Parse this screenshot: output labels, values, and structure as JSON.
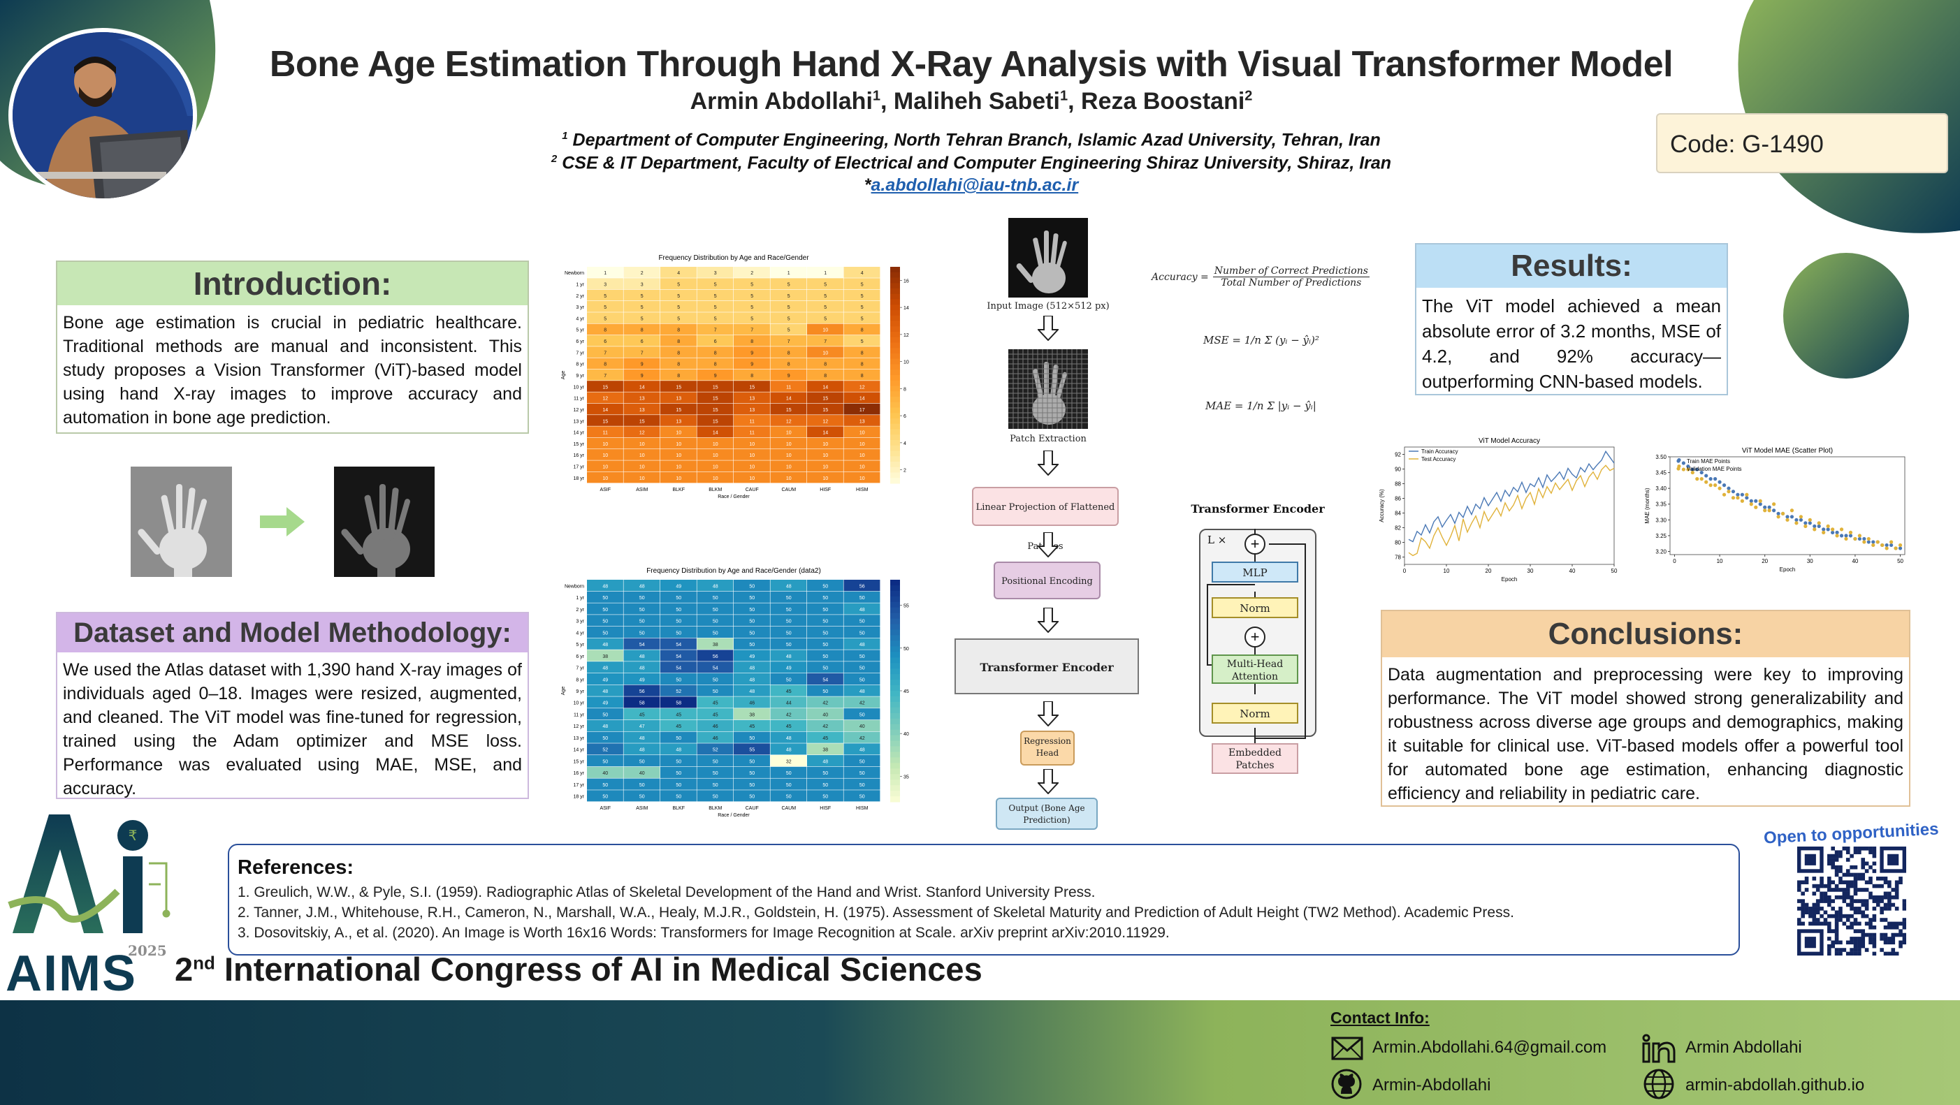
{
  "header": {
    "title": "Bone Age Estimation Through Hand X-Ray Analysis with Visual Transformer Model",
    "authors": [
      {
        "name": "Armin Abdollahi",
        "sup": "1"
      },
      {
        "name": "Maliheh Sabeti",
        "sup": "1"
      },
      {
        "name": "Reza Boostani",
        "sup": "2"
      }
    ],
    "affil1_sup": "1",
    "affil1": "Department of Computer Engineering, North Tehran Branch, Islamic Azad University, Tehran, Iran",
    "affil2_sup": "2",
    "affil2": "CSE & IT Department, Faculty of Electrical and Computer Engineering Shiraz University, Shiraz, Iran",
    "email_prefix": "*",
    "email": "a.abdollahi@iau-tnb.ac.ir",
    "code": "Code: G-1490"
  },
  "introduction": {
    "title": "Introduction:",
    "text": "Bone age estimation is crucial in pediatric healthcare. Traditional methods are manual and inconsistent. This study proposes a Vision Transformer (ViT)-based model using hand X-ray images to improve accuracy and automation in bone age prediction."
  },
  "methodology": {
    "title": "Dataset and Model Methodology:",
    "text": "We used the Atlas dataset with 1,390 hand X-ray images of individuals aged 0–18. Images were resized, augmented, and cleaned. The ViT model was fine-tuned for regression, trained using the Adam optimizer and MSE loss. Performance was evaluated using MAE, MSE, and accuracy."
  },
  "results": {
    "title": "Results:",
    "text": "The ViT model achieved a mean absolute error of 3.2 months, MSE of 4.2, and 92% accuracy—outperforming CNN-based models."
  },
  "conclusions": {
    "title": "Conclusions:",
    "text": "Data augmentation and preprocessing were key to improving performance. The ViT model showed strong generalizability and robustness across diverse age groups and demographics, making it suitable for clinical use. ViT-based models offer a powerful tool for automated bone age estimation, enhancing diagnostic efficiency and reliability in pediatric care."
  },
  "pipeline": {
    "input": "Input Image (512×512 px)",
    "patch": "Patch Extraction",
    "linear": "Linear Projection of Flattened Patches",
    "positional": "Positional Encoding",
    "encoder": "Transformer Encoder",
    "regression": "Regression Head",
    "output": "Output (Bone Age Prediction)"
  },
  "encoder_block": {
    "title": "Transformer Encoder",
    "repeat": "L ×",
    "mlp": "MLP",
    "norm1": "Norm",
    "attention": "Multi-Head Attention",
    "norm2": "Norm",
    "embedded": "Embedded Patches",
    "plus": "+"
  },
  "formulas": {
    "accuracy_lhs": "Accuracy =",
    "accuracy_num": "Number of Correct Predictions",
    "accuracy_den": "Total Number of Predictions",
    "mse": "MSE = 1/n Σ (yᵢ − ŷᵢ)²",
    "mae": "MAE = 1/n Σ |yᵢ − ŷᵢ|"
  },
  "references": {
    "title": "References:",
    "items": [
      "1. Greulich, W.W., & Pyle, S.I. (1959). Radiographic Atlas of Skeletal Development of the Hand and Wrist. Stanford University Press.",
      "2. Tanner, J.M., Whitehouse, R.H., Cameron, N., Marshall, W.A., Healy, M.J.R., Goldstein, H. (1975). Assessment of Skeletal Maturity and Prediction of Adult Height (TW2 Method). Academic Press.",
      "3. Dosovitskiy, A., et al. (2020). An Image is Worth 16x16 Words: Transformers for Image Recognition at Scale. arXiv preprint arXiv:2010.11929."
    ]
  },
  "congress": {
    "ordinal": "2",
    "ordinal_sup": "nd",
    "name": "International Congress of AI in Medical Sciences",
    "logo_text": "AIMS",
    "logo_year": "2025"
  },
  "open_to": "Open to opportunities",
  "contact": {
    "title": "Contact Info:",
    "email": "Armin.Abdollahi.64@gmail.com",
    "linkedin": "Armin Abdollahi",
    "github": "Armin-Abdollahi",
    "website": "armin-abdollah.github.io"
  },
  "icons": [
    "email-icon",
    "linkedin-icon",
    "github-icon",
    "globe-icon",
    "right-arrow-icon",
    "down-arrow-icon",
    "qr-code"
  ],
  "colors": {
    "intro_header": "#c7e7b5",
    "methodology_header": "#d3b5e8",
    "results_header": "#bcdff5",
    "conclusions_header": "#f7d3a4",
    "dark_teal": "#0b3a4a",
    "green": "#8db35a",
    "navy": "#1a2f6a"
  },
  "chart_data": [
    {
      "type": "heatmap",
      "title": "Frequency Distribution by Age and Race/Gender",
      "xlabel": "Race / Gender",
      "ylabel": "Age",
      "x": [
        "ASIF",
        "ASIM",
        "BLKF",
        "BLKM",
        "CAUF",
        "CAUM",
        "HISF",
        "HISM"
      ],
      "y": [
        "Newborn",
        "1 yr",
        "2 yr",
        "3 yr",
        "4 yr",
        "5 yr",
        "6 yr",
        "7 yr",
        "8 yr",
        "9 yr",
        "10 yr",
        "11 yr",
        "12 yr",
        "13 yr",
        "14 yr",
        "15 yr",
        "16 yr",
        "17 yr",
        "18 yr"
      ],
      "values": [
        [
          1,
          2,
          4,
          3,
          2,
          1,
          1,
          4
        ],
        [
          3,
          3,
          5,
          5,
          5,
          5,
          5,
          5
        ],
        [
          5,
          5,
          5,
          5,
          5,
          5,
          5,
          5
        ],
        [
          5,
          5,
          5,
          5,
          5,
          5,
          5,
          5
        ],
        [
          5,
          5,
          5,
          5,
          5,
          5,
          5,
          5
        ],
        [
          8,
          8,
          8,
          7,
          7,
          5,
          10,
          8
        ],
        [
          6,
          6,
          8,
          6,
          8,
          7,
          7,
          5
        ],
        [
          7,
          7,
          8,
          8,
          9,
          8,
          10,
          8
        ],
        [
          8,
          9,
          8,
          8,
          9,
          8,
          8,
          8
        ],
        [
          7,
          9,
          8,
          9,
          8,
          9,
          8,
          8
        ],
        [
          15,
          14,
          15,
          15,
          15,
          11,
          14,
          12
        ],
        [
          12,
          13,
          13,
          15,
          13,
          14,
          15,
          14
        ],
        [
          14,
          13,
          15,
          15,
          13,
          15,
          15,
          17
        ],
        [
          15,
          15,
          13,
          15,
          11,
          12,
          12,
          13
        ],
        [
          11,
          12,
          10,
          14,
          11,
          10,
          14,
          10
        ],
        [
          10,
          10,
          10,
          10,
          10,
          10,
          10,
          10
        ],
        [
          10,
          10,
          10,
          10,
          10,
          10,
          10,
          10
        ],
        [
          10,
          10,
          10,
          10,
          10,
          10,
          10,
          10
        ],
        [
          10,
          10,
          10,
          10,
          10,
          10,
          10,
          10
        ]
      ],
      "colorbar_ticks": [
        2,
        4,
        6,
        8,
        10,
        12,
        14,
        16
      ],
      "colormap": "YlOrBr"
    },
    {
      "type": "heatmap",
      "title": "Frequency Distribution by Age and Race/Gender (data2)",
      "xlabel": "Race / Gender",
      "ylabel": "Age",
      "x": [
        "ASIF",
        "ASIM",
        "BLKF",
        "BLKM",
        "CAUF",
        "CAUM",
        "HISF",
        "HISM"
      ],
      "y": [
        "Newborn",
        "1 yr",
        "2 yr",
        "3 yr",
        "4 yr",
        "5 yr",
        "6 yr",
        "7 yr",
        "8 yr",
        "9 yr",
        "10 yr",
        "11 yr",
        "12 yr",
        "13 yr",
        "14 yr",
        "15 yr",
        "16 yr",
        "17 yr",
        "18 yr"
      ],
      "values": [
        [
          48,
          48,
          49,
          48,
          50,
          48,
          50,
          56
        ],
        [
          50,
          50,
          50,
          50,
          50,
          50,
          50,
          50
        ],
        [
          50,
          50,
          50,
          50,
          50,
          50,
          50,
          48
        ],
        [
          50,
          50,
          50,
          50,
          50,
          50,
          50,
          50
        ],
        [
          50,
          50,
          50,
          50,
          50,
          50,
          50,
          50
        ],
        [
          48,
          54,
          54,
          38,
          50,
          50,
          50,
          48
        ],
        [
          38,
          48,
          54,
          56,
          49,
          48,
          50,
          50
        ],
        [
          48,
          48,
          54,
          54,
          48,
          49,
          50,
          50
        ],
        [
          49,
          49,
          50,
          50,
          48,
          50,
          54,
          50
        ],
        [
          48,
          56,
          52,
          50,
          48,
          45,
          50,
          48
        ],
        [
          49,
          58,
          58,
          45,
          46,
          44,
          42,
          42
        ],
        [
          50,
          45,
          45,
          45,
          38,
          42,
          40,
          50
        ],
        [
          48,
          47,
          45,
          46,
          45,
          45,
          42,
          40
        ],
        [
          50,
          48,
          50,
          46,
          50,
          48,
          45,
          42
        ],
        [
          52,
          48,
          48,
          52,
          55,
          48,
          38,
          48
        ],
        [
          50,
          50,
          50,
          50,
          50,
          32,
          48,
          50
        ],
        [
          40,
          40,
          50,
          50,
          50,
          50,
          50,
          50
        ],
        [
          50,
          50,
          50,
          50,
          50,
          50,
          50,
          50
        ],
        [
          50,
          50,
          50,
          50,
          50,
          50,
          50,
          50
        ]
      ],
      "colorbar_ticks": [
        35,
        40,
        45,
        50,
        55
      ],
      "colormap": "YlGnBu"
    },
    {
      "type": "line",
      "title": "ViT Model Accuracy",
      "xlabel": "Epoch",
      "ylabel": "Accuracy (%)",
      "xlim": [
        0,
        50
      ],
      "ylim": [
        77,
        93
      ],
      "xticks": [
        0,
        10,
        20,
        30,
        40,
        50
      ],
      "yticks": [
        78,
        80,
        82,
        84,
        86,
        88,
        90,
        92
      ],
      "legend": "top-left",
      "x": [
        1,
        2,
        3,
        4,
        5,
        6,
        7,
        8,
        9,
        10,
        11,
        12,
        13,
        14,
        15,
        16,
        17,
        18,
        19,
        20,
        21,
        22,
        23,
        24,
        25,
        26,
        27,
        28,
        29,
        30,
        31,
        32,
        33,
        34,
        35,
        36,
        37,
        38,
        39,
        40,
        41,
        42,
        43,
        44,
        45,
        46,
        47,
        48,
        49,
        50
      ],
      "series": [
        {
          "name": "Train Accuracy",
          "color": "#4a78b5",
          "values": [
            80.4,
            80.1,
            81.5,
            81.0,
            82.4,
            81.3,
            82.8,
            83.5,
            82.1,
            83.0,
            83.8,
            82.6,
            84.1,
            83.4,
            84.9,
            83.8,
            85.2,
            84.6,
            86.1,
            85.0,
            85.9,
            86.8,
            85.6,
            87.1,
            86.3,
            87.5,
            86.9,
            88.2,
            86.8,
            88.0,
            87.6,
            88.8,
            87.5,
            89.2,
            88.3,
            88.9,
            89.6,
            88.6,
            90.1,
            89.3,
            88.8,
            90.2,
            89.6,
            90.7,
            89.9,
            90.6,
            91.2,
            92.4,
            91.6,
            90.8
          ]
        },
        {
          "name": "Test Accuracy",
          "color": "#e0b23a",
          "values": [
            78.6,
            78.2,
            78.5,
            80.6,
            80.1,
            79.2,
            80.9,
            82.0,
            80.7,
            79.6,
            80.8,
            82.3,
            80.2,
            83.2,
            81.4,
            82.6,
            83.6,
            82.0,
            84.2,
            82.9,
            83.8,
            84.7,
            83.6,
            85.4,
            84.3,
            85.1,
            86.4,
            84.6,
            86.0,
            86.8,
            85.2,
            87.3,
            86.1,
            87.6,
            86.7,
            88.1,
            87.2,
            87.9,
            88.6,
            87.1,
            88.4,
            89.1,
            87.6,
            88.9,
            89.6,
            88.6,
            89.9,
            90.5,
            89.8,
            90.1
          ]
        }
      ]
    },
    {
      "type": "scatter",
      "title": "ViT Model MAE (Scatter Plot)",
      "xlabel": "Epoch",
      "ylabel": "MAE (months)",
      "xlim": [
        -1,
        51
      ],
      "ylim": [
        3.19,
        3.5
      ],
      "xticks": [
        0,
        10,
        20,
        30,
        40,
        50
      ],
      "yticks": [
        3.2,
        3.25,
        3.3,
        3.35,
        3.4,
        3.45,
        3.5
      ],
      "legend": "top-left",
      "x": [
        1,
        2,
        3,
        4,
        5,
        6,
        7,
        8,
        9,
        10,
        11,
        12,
        13,
        14,
        15,
        16,
        17,
        18,
        19,
        20,
        21,
        22,
        23,
        24,
        25,
        26,
        27,
        28,
        29,
        30,
        31,
        32,
        33,
        34,
        35,
        36,
        37,
        38,
        39,
        40,
        41,
        42,
        43,
        44,
        45,
        46,
        47,
        48,
        49,
        50
      ],
      "series": [
        {
          "name": "Train MAE Points",
          "color": "#4a78b5",
          "values": [
            3.49,
            3.48,
            3.47,
            3.46,
            3.46,
            3.45,
            3.44,
            3.43,
            3.43,
            3.42,
            3.41,
            3.4,
            3.39,
            3.38,
            3.38,
            3.37,
            3.36,
            3.36,
            3.35,
            3.34,
            3.34,
            3.33,
            3.32,
            3.32,
            3.31,
            3.31,
            3.3,
            3.3,
            3.29,
            3.29,
            3.28,
            3.28,
            3.27,
            3.27,
            3.26,
            3.26,
            3.25,
            3.25,
            3.25,
            3.24,
            3.24,
            3.24,
            3.23,
            3.23,
            3.23,
            3.22,
            3.22,
            3.22,
            3.21,
            3.21
          ]
        },
        {
          "name": "Validation MAE Points",
          "color": "#e0b23a",
          "values": [
            3.47,
            3.46,
            3.46,
            3.45,
            3.43,
            3.43,
            3.42,
            3.41,
            3.41,
            3.4,
            3.38,
            3.39,
            3.37,
            3.37,
            3.36,
            3.38,
            3.35,
            3.34,
            3.36,
            3.33,
            3.33,
            3.35,
            3.31,
            3.32,
            3.3,
            3.33,
            3.29,
            3.31,
            3.28,
            3.3,
            3.27,
            3.29,
            3.26,
            3.28,
            3.27,
            3.25,
            3.27,
            3.24,
            3.26,
            3.24,
            3.25,
            3.23,
            3.24,
            3.22,
            3.23,
            3.22,
            3.21,
            3.23,
            3.21,
            3.22
          ]
        }
      ]
    }
  ]
}
